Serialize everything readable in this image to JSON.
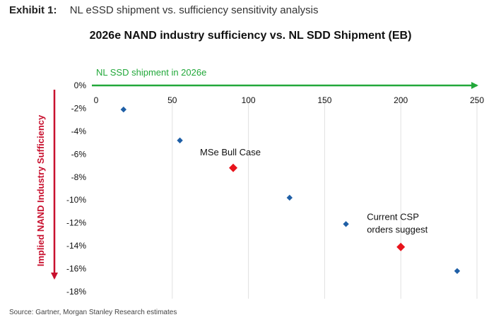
{
  "header": {
    "exhibit_label": "Exhibit 1:",
    "exhibit_title": "NL eSSD shipment vs. sufficiency sensitivity analysis"
  },
  "source": "Source: Gartner, Morgan Stanley Research estimates",
  "colors": {
    "regular_point": "#1f5fa6",
    "highlight_point": "#e8141c",
    "x_axis": "#22a83a",
    "y_axis": "#c8102e",
    "gridline": "#e0e0e0"
  },
  "chart_data": {
    "type": "scatter",
    "title": "2026e NAND industry sufficiency vs. NL SDD Shipment (EB)",
    "xlabel": "NL SSD shipment in 2026e",
    "ylabel": "Implied NAND Industry Sufficiency",
    "xlim": [
      0,
      250
    ],
    "ylim": [
      -18,
      0
    ],
    "x_ticks": [
      "0",
      "50",
      "100",
      "150",
      "200",
      "250"
    ],
    "x_tick_values": [
      0,
      50,
      100,
      150,
      200,
      250
    ],
    "y_ticks": [
      "0%",
      "-2%",
      "-4%",
      "-6%",
      "-8%",
      "-10%",
      "-12%",
      "-14%",
      "-16%",
      "-18%"
    ],
    "y_tick_values": [
      0,
      -2,
      -4,
      -6,
      -8,
      -10,
      -12,
      -14,
      -16,
      -18
    ],
    "grid": "vertical",
    "points": [
      {
        "x": 18,
        "y": -2.1,
        "highlight": false
      },
      {
        "x": 55,
        "y": -4.8,
        "highlight": false
      },
      {
        "x": 90,
        "y": -7.2,
        "highlight": true
      },
      {
        "x": 127,
        "y": -9.8,
        "highlight": false
      },
      {
        "x": 164,
        "y": -12.1,
        "highlight": false
      },
      {
        "x": 200,
        "y": -14.1,
        "highlight": true
      },
      {
        "x": 237,
        "y": -16.2,
        "highlight": false
      }
    ],
    "annotations": [
      {
        "text": "MSe Bull Case",
        "x": 90,
        "y": -7.2
      },
      {
        "lines": [
          "Current CSP",
          "orders suggest"
        ],
        "x": 200,
        "y": -14.1
      }
    ]
  }
}
